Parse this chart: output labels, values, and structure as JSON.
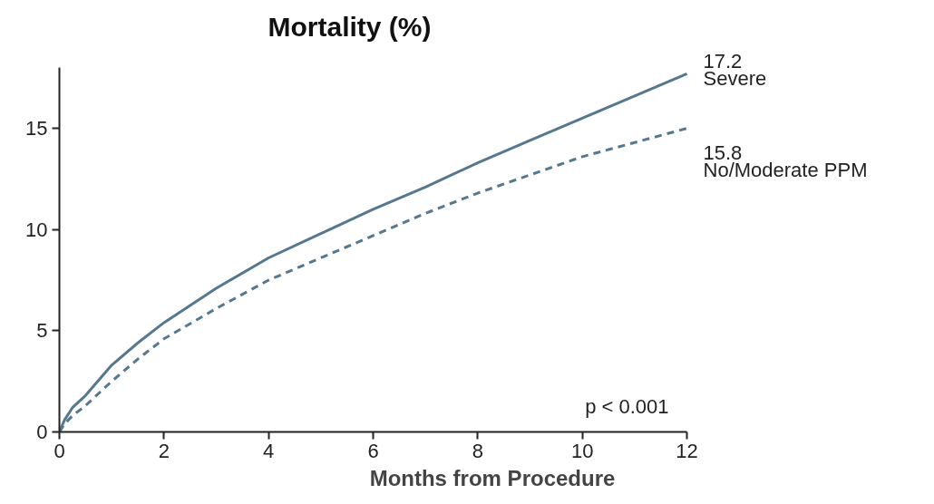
{
  "chart_data": {
    "type": "line",
    "title": "Mortality (%)",
    "xlabel": "Months from Procedure",
    "xlim": [
      0,
      12
    ],
    "xticks": [
      0,
      2,
      4,
      6,
      8,
      10,
      12
    ],
    "ylim": [
      0,
      18
    ],
    "yticks": [
      0,
      5,
      10,
      15
    ],
    "grid": false,
    "legend": false,
    "marker": "none",
    "series": [
      {
        "name": "Severe",
        "color": "#55788f",
        "line_style": "solid",
        "x": [
          0,
          0.1,
          0.25,
          0.5,
          1,
          1.5,
          2,
          3,
          4,
          5,
          6,
          7,
          8,
          9,
          10,
          11,
          12
        ],
        "values": [
          0,
          0.6,
          1.2,
          1.8,
          3.3,
          4.4,
          5.4,
          7.1,
          8.6,
          9.8,
          11.0,
          12.1,
          13.3,
          14.4,
          15.5,
          16.6,
          17.7
        ]
      },
      {
        "name": "No/Moderate PPM",
        "color": "#55788f",
        "line_style": "dashed",
        "x": [
          0,
          0.1,
          0.25,
          0.5,
          1,
          1.5,
          2,
          3,
          4,
          5,
          6,
          7,
          8,
          9,
          10,
          11,
          12
        ],
        "values": [
          0,
          0.4,
          0.8,
          1.3,
          2.5,
          3.6,
          4.6,
          6.1,
          7.5,
          8.6,
          9.7,
          10.8,
          11.8,
          12.7,
          13.6,
          14.3,
          15.0
        ]
      }
    ],
    "annotations": [
      "17.2",
      "15.8",
      "p < 0.001"
    ]
  }
}
